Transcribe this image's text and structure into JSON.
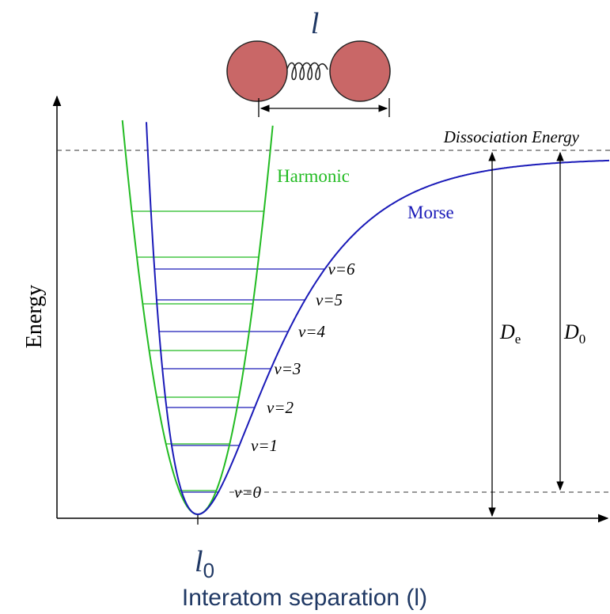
{
  "molecule_label": "l",
  "dissociation_label": "Dissociation Energy",
  "curves": {
    "harmonic": "Harmonic",
    "morse": "Morse"
  },
  "levels": [
    "v=0",
    "v=1",
    "v=2",
    "v=3",
    "v=4",
    "v=5",
    "v=6"
  ],
  "y_label": "Energy",
  "depth_labels": [
    {
      "symbol": "D",
      "subscript": "e"
    },
    {
      "symbol": "D",
      "subscript": "0"
    }
  ],
  "x_tick": {
    "symbol": "l",
    "subscript": "0"
  },
  "x_label": "Interatom separation (l)"
}
